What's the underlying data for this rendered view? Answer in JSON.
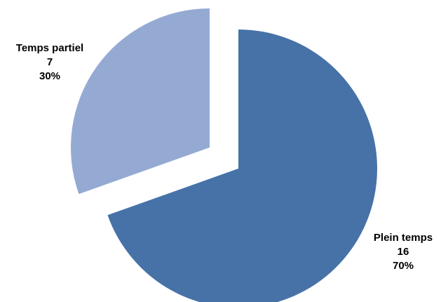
{
  "chart_data": {
    "type": "pie",
    "title": "",
    "exploded": true,
    "slices": [
      {
        "name": "Plein temps",
        "value": 16,
        "percent": "70%",
        "color": "#4672A8"
      },
      {
        "name": "Temps partiel",
        "value": 7,
        "percent": "30%",
        "color": "#95AAD2"
      }
    ]
  }
}
